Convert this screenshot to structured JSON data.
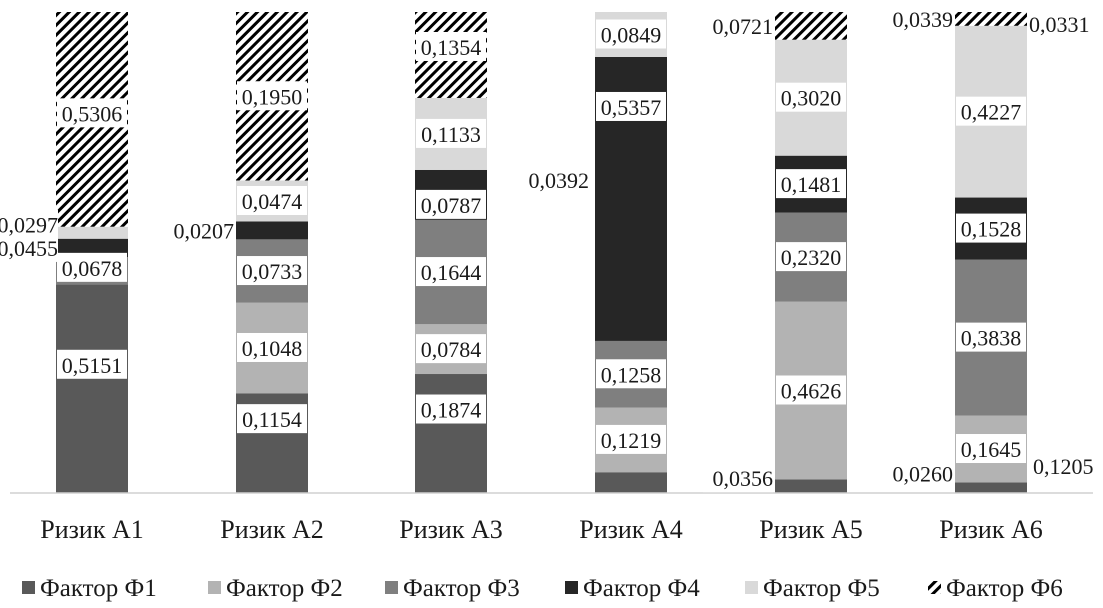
{
  "chart_data": {
    "type": "bar",
    "stacked": true,
    "normalized": true,
    "categories": [
      "Ризик А1",
      "Ризик А2",
      "Ризик А3",
      "Ризик А4",
      "Ризик А5",
      "Ризик А6"
    ],
    "series": [
      {
        "name": "Фактор Ф1",
        "color": "#595959",
        "pattern": "solid",
        "values": [
          0.5151,
          0.1154,
          0.1874,
          0.0392,
          0.0356,
          0.026
        ],
        "labels": [
          "0,5151",
          "0,1154",
          "0,1874",
          "",
          "0,0356",
          "0,0260"
        ]
      },
      {
        "name": "Фактор Ф2",
        "color": "#b3b3b3",
        "pattern": "solid",
        "values": [
          0.0,
          0.1048,
          0.0784,
          0.1219,
          0.4626,
          0.1645
        ],
        "labels": [
          "",
          "0,1048",
          "0,0784",
          "0,1219",
          "0,4626",
          "0,1645"
        ]
      },
      {
        "name": "Фактор Ф3",
        "color": "#7f7f7f",
        "pattern": "solid",
        "values": [
          0.0678,
          0.0733,
          0.1644,
          0.1258,
          0.232,
          0.3838
        ],
        "labels": [
          "0,0678",
          "0,0733",
          "0,1644",
          "0,1258",
          "0,2320",
          "0,3838"
        ]
      },
      {
        "name": "Фактор Ф4",
        "color": "#262626",
        "pattern": "solid",
        "values": [
          0.0455,
          0.0207,
          0.0787,
          0.5357,
          0.1481,
          0.1528
        ],
        "labels": [
          "0,0455",
          "0,0207",
          "0,0787",
          "0,5357",
          "0,1481",
          "0,1528"
        ]
      },
      {
        "name": "Фактор Ф5",
        "color": "#d9d9d9",
        "pattern": "solid",
        "values": [
          0.0297,
          0.0474,
          0.1133,
          0.0849,
          0.302,
          0.4227
        ],
        "labels": [
          "0,0297",
          "0,0474",
          "0,1133",
          "0,0849",
          "0,3020",
          "0,4227"
        ]
      },
      {
        "name": "Фактор Ф6",
        "color": "#000000",
        "pattern": "hatch",
        "values": [
          0.5306,
          0.195,
          0.1354,
          0.0,
          0.0721,
          0.0339
        ],
        "labels": [
          "0,5306",
          "0,1950",
          "0,1354",
          "",
          "0,0721",
          "0,0339"
        ]
      }
    ],
    "extra_labels": [
      "0,0392",
      "0,1205",
      "0,0331"
    ],
    "legend_position": "bottom",
    "grid": false,
    "xlabel": "",
    "ylabel": ""
  }
}
